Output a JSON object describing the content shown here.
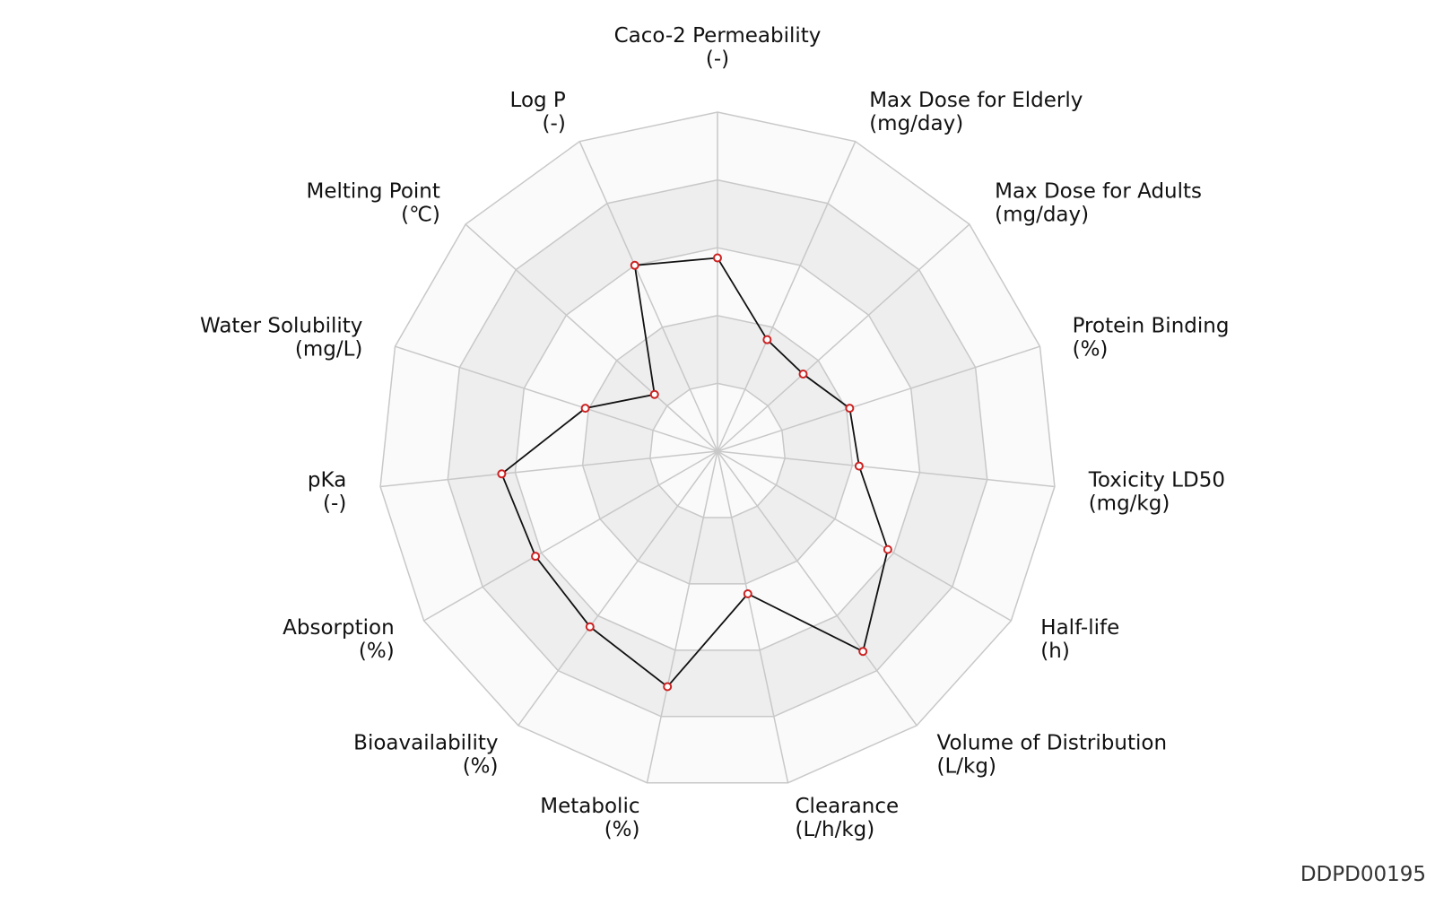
{
  "footer": {
    "id_label": "DDPD00195"
  },
  "colors": {
    "band_shaded": "#eeeeee",
    "band_light": "#fafafa",
    "grid_line": "#c8c8c8",
    "polyline": "#111111",
    "marker": "#cc2222"
  },
  "chart_data": {
    "type": "radar",
    "rings": 5,
    "range": [
      0,
      1
    ],
    "axes": [
      {
        "name": "Caco-2 Permeability",
        "unit": "(-)",
        "value": 0.57
      },
      {
        "name": "Max Dose for Elderly",
        "unit": "(mg/day)",
        "value": 0.36
      },
      {
        "name": "Max Dose for Adults",
        "unit": "(mg/day)",
        "value": 0.34
      },
      {
        "name": "Protein Binding",
        "unit": "(%)",
        "value": 0.41
      },
      {
        "name": "Toxicity LD50",
        "unit": "(mg/kg)",
        "value": 0.42
      },
      {
        "name": "Half-life",
        "unit": "(h)",
        "value": 0.58
      },
      {
        "name": "Volume of Distribution",
        "unit": "(L/kg)",
        "value": 0.73
      },
      {
        "name": "Clearance",
        "unit": "(L/h/kg)",
        "value": 0.43
      },
      {
        "name": "Metabolic",
        "unit": "(%)",
        "value": 0.71
      },
      {
        "name": "Bioavailability",
        "unit": "(%)",
        "value": 0.64
      },
      {
        "name": "Absorption",
        "unit": "(%)",
        "value": 0.62
      },
      {
        "name": "pKa",
        "unit": "(-)",
        "value": 0.64
      },
      {
        "name": "Water Solubility",
        "unit": "(mg/L)",
        "value": 0.41
      },
      {
        "name": "Melting Point",
        "unit": "(℃)",
        "value": 0.25
      },
      {
        "name": "Log P",
        "unit": "(-)",
        "value": 0.6
      }
    ]
  }
}
